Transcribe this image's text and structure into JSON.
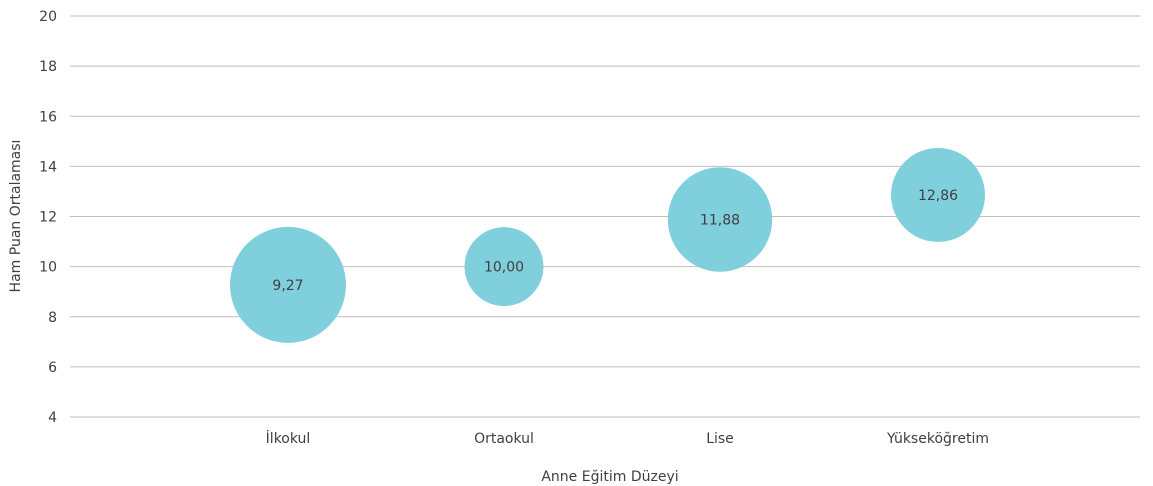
{
  "chart_data": {
    "type": "scatter",
    "subtype": "bubble",
    "title": "",
    "xlabel": "Anne Eğitim Düzeyi",
    "ylabel": "Ham Puan Ortalaması",
    "categories": [
      "İlkokul",
      "Ortaokul",
      "Lise",
      "Yükseköğretim"
    ],
    "series": [
      {
        "values": [
          9.27,
          10.0,
          11.88,
          12.86
        ],
        "labels": [
          "9,27",
          "10,00",
          "11,88",
          "12,86"
        ],
        "bubble_size_relative": [
          1.0,
          0.68,
          0.9,
          0.81
        ]
      }
    ],
    "ylim": [
      4,
      20
    ],
    "yticks": [
      4,
      6,
      8,
      10,
      12,
      14,
      16,
      18,
      20
    ],
    "grid": true,
    "legend": "none",
    "colors": {
      "bubble": "#7fd0dc",
      "grid": "#bfbfbf",
      "text": "#404040"
    }
  }
}
